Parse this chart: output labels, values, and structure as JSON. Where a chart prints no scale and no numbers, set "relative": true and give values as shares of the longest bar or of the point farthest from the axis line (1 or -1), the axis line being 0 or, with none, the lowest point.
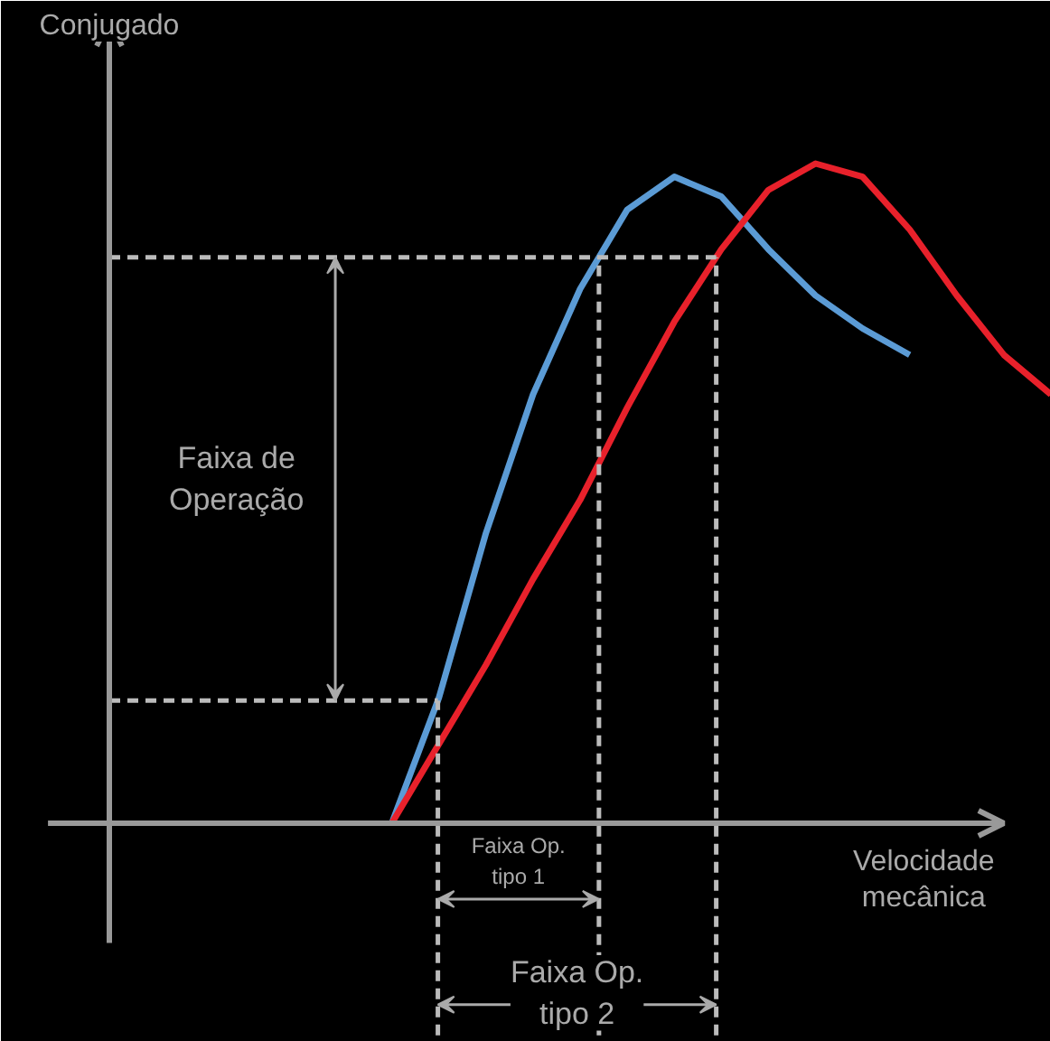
{
  "chart_data": {
    "type": "line",
    "relative": true,
    "xlabel": "Velocidade mecânica",
    "categories": [
      null,
      null,
      null,
      null,
      null,
      null,
      null,
      null,
      null,
      null,
      null,
      null,
      null,
      null,
      null
    ],
    "series": [
      {
        "color": "#5b9bd5",
        "values": [
          0,
          0.19,
          0.44,
          0.65,
          0.81,
          0.93,
          0.98,
          0.95,
          0.87,
          0.8,
          0.75,
          0.71,
          null,
          null,
          null
        ]
      },
      {
        "color": "#e8212b",
        "values": [
          0,
          0.12,
          0.24,
          0.37,
          0.49,
          0.63,
          0.76,
          0.87,
          0.96,
          1,
          0.98,
          0.9,
          0.8,
          0.71,
          0.65
        ]
      }
    ],
    "ref_lines": [
      {
        "axis": "y",
        "value": 0.858,
        "color": "#bbbbbb",
        "line_style": "dashed"
      },
      {
        "axis": "y",
        "value": 0.186,
        "color": "#bbbbbb",
        "line_style": "dashed"
      }
    ],
    "annotations": [
      "Faixa de\nOperação",
      "Faixa Op.\ntipo 1",
      "Faixa Op.\ntipo 2",
      "Conjugado"
    ],
    "grid": false,
    "marker": "none",
    "line_style": "solid"
  }
}
